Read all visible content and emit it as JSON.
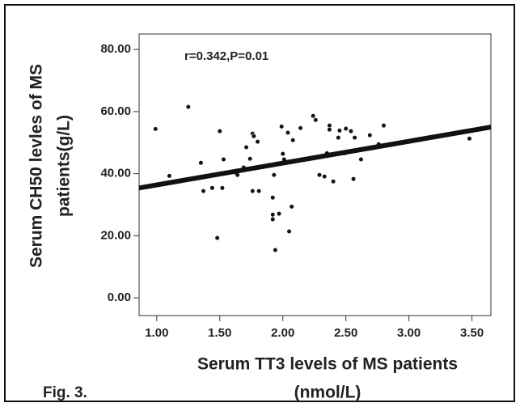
{
  "chart_data": {
    "type": "scatter",
    "annotation": "r=0.342,P=0.01",
    "figure_label": "Fig. 3.",
    "xlabel": [
      "Serum TT3 levels of MS patients",
      "(nmol/L)"
    ],
    "ylabel": [
      "Serum CH50 levles of MS",
      "patients(g/L)"
    ],
    "xlim": [
      0.86,
      3.65
    ],
    "ylim": [
      -5.7,
      85
    ],
    "xticks": [
      {
        "value": 1,
        "label": "1.00"
      },
      {
        "value": 1.5,
        "label": "1.50"
      },
      {
        "value": 2,
        "label": "2.00"
      },
      {
        "value": 2.5,
        "label": "2.50"
      },
      {
        "value": 3,
        "label": "3.00"
      },
      {
        "value": 3.5,
        "label": "3.50"
      }
    ],
    "yticks": [
      {
        "value": 0,
        "label": "0.00"
      },
      {
        "value": 20,
        "label": "20.00"
      },
      {
        "value": 40,
        "label": "40.00"
      },
      {
        "value": 60,
        "label": "60.00"
      },
      {
        "value": 80,
        "label": "80.00"
      }
    ],
    "color": "#111111",
    "x": [
      0.99,
      1.1,
      1.25,
      1.35,
      1.37,
      1.44,
      1.48,
      1.5,
      1.52,
      1.53,
      1.62,
      1.64,
      1.69,
      1.71,
      1.74,
      1.76,
      1.77,
      1.76,
      1.81,
      1.8,
      1.92,
      1.92,
      1.92,
      1.94,
      1.97,
      1.93,
      1.99,
      2.0,
      2.01,
      2.04,
      2.05,
      2.07,
      2.08,
      2.14,
      2.24,
      2.26,
      2.29,
      2.33,
      2.35,
      2.37,
      2.37,
      2.4,
      2.44,
      2.45,
      2.49,
      2.5,
      2.54,
      2.56,
      2.57,
      2.62,
      2.69,
      2.76,
      2.8,
      3.48
    ],
    "values": [
      54.4,
      39.3,
      61.5,
      43.5,
      34.4,
      35.4,
      19.3,
      53.7,
      35.4,
      44.6,
      40.4,
      39.6,
      42,
      48.5,
      44.8,
      52.9,
      52.1,
      34.4,
      34.4,
      50.3,
      32.3,
      26.8,
      25.3,
      15.4,
      27.1,
      39.6,
      55.2,
      46.4,
      44.6,
      53.2,
      21.4,
      29.4,
      50.8,
      54.7,
      58.6,
      57.3,
      39.6,
      39.1,
      46.6,
      55.5,
      54.2,
      37.5,
      51.6,
      53.9,
      46.6,
      54.5,
      53.7,
      38.3,
      51.6,
      44.6,
      52.4,
      49.5,
      55.5,
      51.3
    ],
    "trend_line": {
      "x": [
        0.86,
        3.65
      ],
      "values": [
        35.4,
        55.0
      ]
    }
  }
}
